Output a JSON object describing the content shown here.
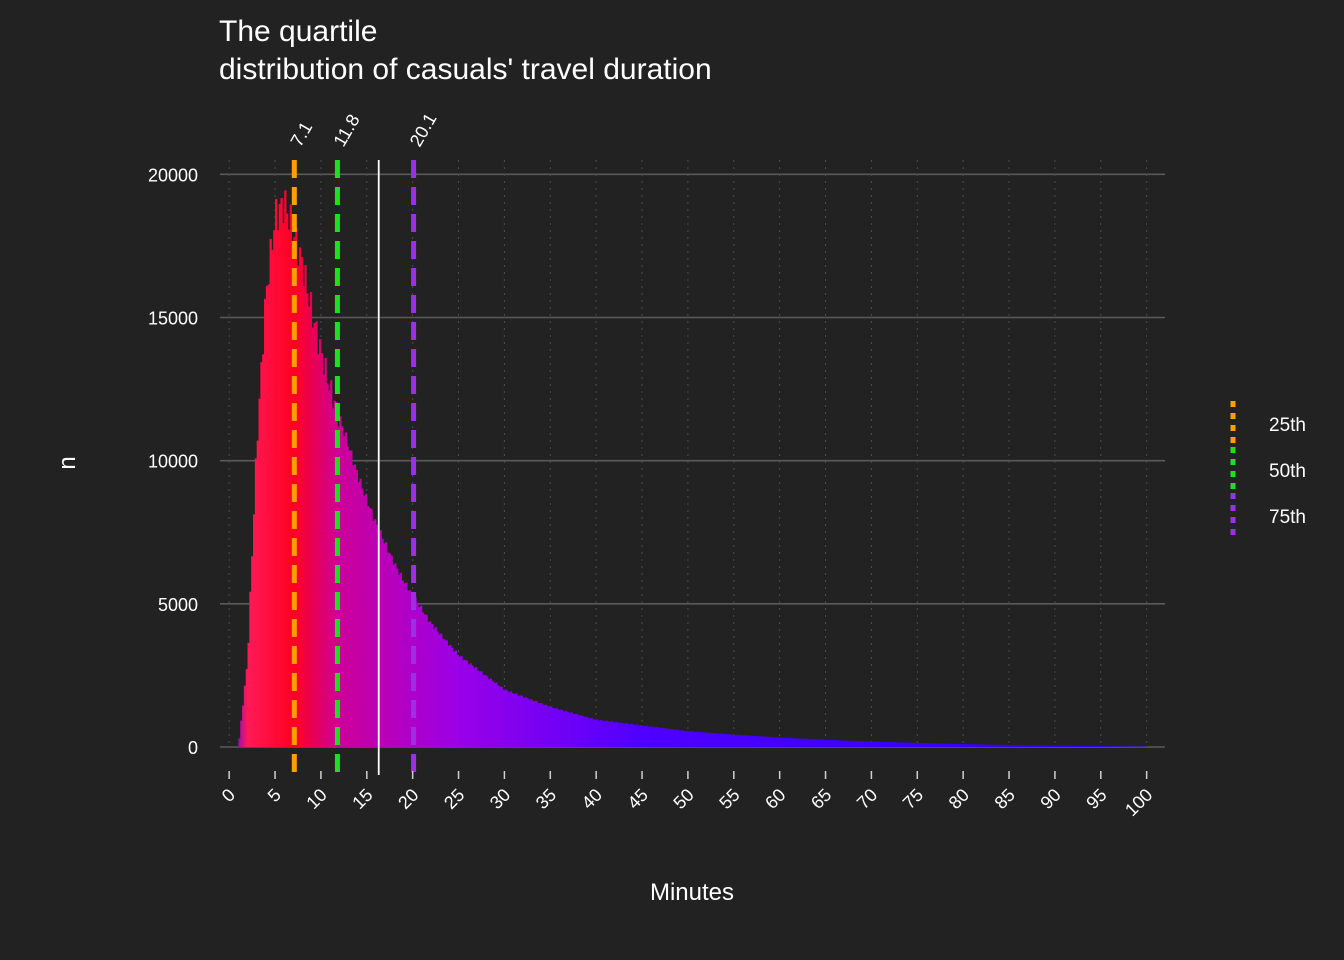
{
  "chart_data": {
    "type": "bar",
    "title_lines": [
      "The quartile",
      "distribution of casuals' travel duration"
    ],
    "xlabel": "Minutes",
    "ylabel": "n",
    "xlim": [
      -1,
      102
    ],
    "ylim": [
      0,
      20500
    ],
    "x_ticks": [
      0,
      5,
      10,
      15,
      20,
      25,
      30,
      35,
      40,
      45,
      50,
      55,
      60,
      65,
      70,
      75,
      80,
      85,
      90,
      95,
      100
    ],
    "y_ticks": [
      0,
      5000,
      10000,
      15000,
      20000
    ],
    "bin_width_minutes": 0.2,
    "bins_x": [
      1,
      2,
      3,
      4,
      5,
      6,
      7,
      8,
      9,
      10,
      11,
      12,
      13,
      14,
      15,
      16,
      17,
      18,
      19,
      20,
      22,
      25,
      30,
      35,
      40,
      45,
      50,
      55,
      60,
      65,
      70,
      75,
      80,
      85,
      90,
      95,
      100
    ],
    "bins_y": [
      0,
      3000,
      10500,
      15800,
      18500,
      19000,
      18000,
      16800,
      15200,
      13800,
      12500,
      11500,
      10500,
      9500,
      8600,
      7800,
      7100,
      6400,
      5800,
      5300,
      4300,
      3200,
      2000,
      1400,
      950,
      750,
      550,
      430,
      330,
      250,
      190,
      140,
      100,
      70,
      50,
      30,
      10
    ],
    "mean_line_x": 16.3,
    "grid": true,
    "legend_position": "right",
    "quartiles": [
      {
        "name": "25th",
        "value": 7.1,
        "label": "7.1",
        "color": "#ff9f00"
      },
      {
        "name": "50th",
        "value": 11.8,
        "label": "11.8",
        "color": "#1fe01f"
      },
      {
        "name": "75th",
        "value": 20.1,
        "label": "20.1",
        "color": "#9b30e6"
      }
    ],
    "fill_gradient": {
      "stops_x": [
        0,
        2,
        7,
        12,
        25,
        45,
        100
      ],
      "stops_color": [
        "#3d00ff",
        "#ff1a57",
        "#ff0022",
        "#cc0099",
        "#9a00e8",
        "#4f00ff",
        "#2a00ff"
      ]
    }
  }
}
